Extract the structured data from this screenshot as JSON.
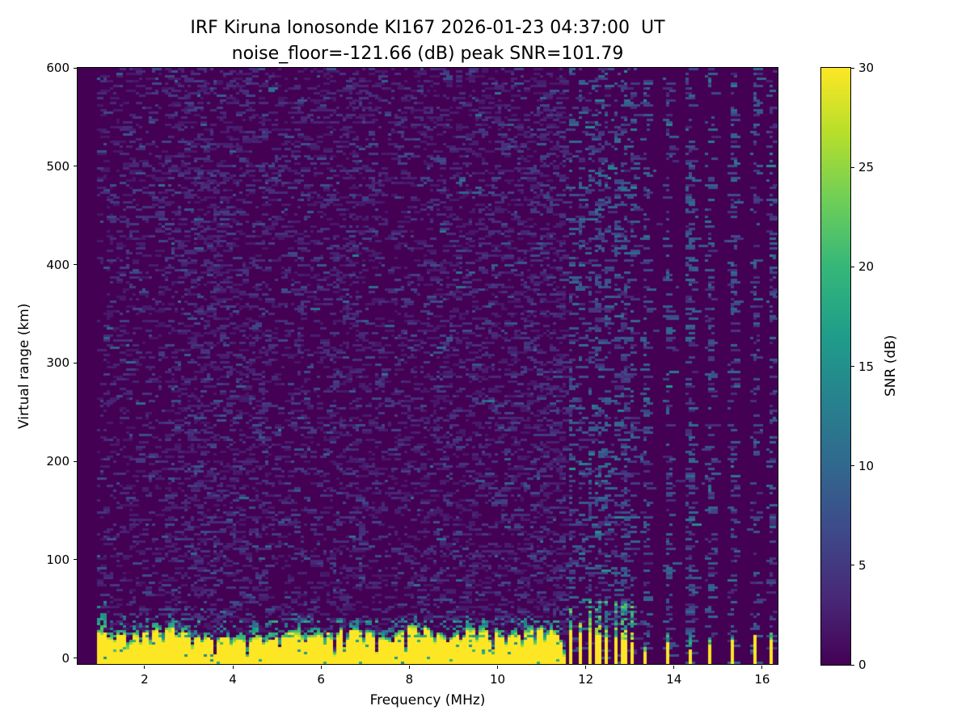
{
  "chart_data": {
    "type": "heatmap",
    "title_line1": "IRF Kiruna Ionosonde KI167 2026-01-23 04:37:00  UT",
    "title_line2": "noise_floor=-121.66 (dB) peak SNR=101.79",
    "xlabel": "Frequency (MHz)",
    "ylabel": "Virtual range (km)",
    "colorbar_label": "SNR (dB)",
    "noise_floor_db": -121.66,
    "peak_snr_db": 101.79,
    "xlim": [
      0.48,
      16.35
    ],
    "ylim": [
      -6,
      600
    ],
    "clim": [
      0,
      30
    ],
    "xticks": [
      2,
      4,
      6,
      8,
      10,
      12,
      14,
      16
    ],
    "yticks": [
      0,
      100,
      200,
      300,
      400,
      500,
      600
    ],
    "colorbar_ticks": [
      0,
      5,
      10,
      15,
      20,
      25,
      30
    ],
    "grid": false,
    "colormap": "viridis",
    "colormap_stops": [
      "#440154",
      "#482878",
      "#3e4989",
      "#31688e",
      "#26828e",
      "#1f9e89",
      "#35b779",
      "#6ece58",
      "#b5de2b",
      "#fde725"
    ],
    "features": {
      "data_f_start_mhz": 0.92,
      "sweep": {
        "f_start": 0.92,
        "f_end": 11.55,
        "clutter_top_km_min": 17,
        "clutter_top_km_max": 32,
        "clutter_lines_km": [
          23,
          37
        ],
        "notches_f_depthkm": [
          [
            1.3,
            14
          ],
          [
            1.64,
            4
          ],
          [
            1.9,
            15
          ],
          [
            2.12,
            11
          ],
          [
            2.4,
            8
          ],
          [
            2.75,
            14
          ],
          [
            3.07,
            10
          ],
          [
            3.3,
            15
          ],
          [
            3.6,
            3
          ],
          [
            3.98,
            10
          ],
          [
            4.33,
            1
          ],
          [
            4.72,
            9
          ],
          [
            5.08,
            7
          ],
          [
            5.62,
            12
          ],
          [
            6.08,
            11
          ],
          [
            6.3,
            2
          ],
          [
            6.55,
            4
          ],
          [
            6.95,
            12
          ],
          [
            7.26,
            5
          ],
          [
            7.6,
            13
          ],
          [
            7.92,
            6
          ],
          [
            8.25,
            13
          ],
          [
            8.55,
            10
          ],
          [
            8.9,
            14
          ],
          [
            9.2,
            11
          ],
          [
            9.55,
            14
          ],
          [
            9.88,
            3
          ],
          [
            10.2,
            13
          ],
          [
            10.55,
            10
          ],
          [
            10.85,
            13
          ],
          [
            11.1,
            9
          ],
          [
            11.5,
            1
          ]
        ]
      },
      "dense_columns": {
        "freqs_mhz": [
          11.66,
          11.88,
          12.1,
          12.3,
          12.48,
          12.67,
          12.85,
          13.05
        ],
        "yellow_top_km": [
          28,
          26,
          25,
          23,
          22,
          20,
          18,
          16
        ]
      },
      "sparse_columns": {
        "freqs_mhz": [
          13.36,
          13.87,
          14.35,
          14.82,
          15.33,
          15.84,
          16.22
        ],
        "yellow_top_km": [
          6,
          16,
          10,
          14,
          18,
          23,
          19
        ]
      },
      "noise": {
        "seed": 20260123,
        "speckle_p_sweep": 0.2,
        "speckle_p_trace": 0.33,
        "speckle_p_background": 0.004
      }
    }
  }
}
